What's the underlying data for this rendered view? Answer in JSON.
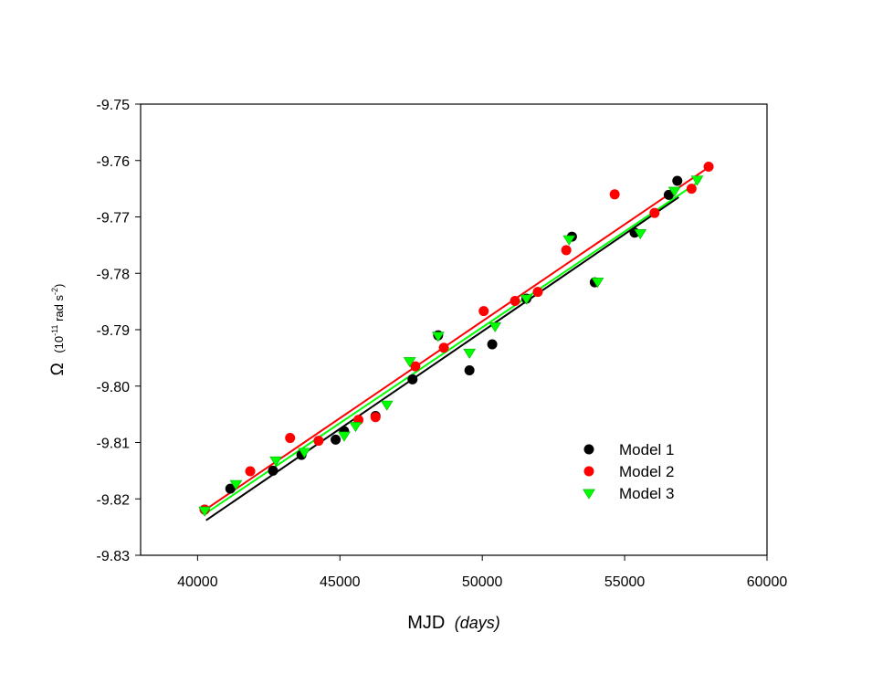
{
  "chart_data": {
    "type": "scatter",
    "xlabel": "MJD",
    "xlabel_unit": "(days)",
    "ylabel_symbol": "Ω",
    "ylabel_unit_prefix": "(10",
    "ylabel_unit_exp": "-11",
    "ylabel_unit_mid": " rad s",
    "ylabel_unit_exp2": "-2",
    "ylabel_unit_suffix": ")",
    "xlim": [
      38000,
      60000
    ],
    "ylim": [
      -9.83,
      -9.75
    ],
    "x_ticks": [
      {
        "v": 40000,
        "label": "40000"
      },
      {
        "v": 45000,
        "label": "45000"
      },
      {
        "v": 50000,
        "label": "50000"
      },
      {
        "v": 55000,
        "label": "55000"
      },
      {
        "v": 60000,
        "label": "60000"
      }
    ],
    "y_ticks": [
      {
        "v": -9.75,
        "label": "-9.75"
      },
      {
        "v": -9.76,
        "label": "-9.76"
      },
      {
        "v": -9.77,
        "label": "-9.77"
      },
      {
        "v": -9.78,
        "label": "-9.78"
      },
      {
        "v": -9.79,
        "label": "-9.79"
      },
      {
        "v": -9.8,
        "label": "-9.80"
      },
      {
        "v": -9.81,
        "label": "-9.81"
      },
      {
        "v": -9.82,
        "label": "-9.82"
      },
      {
        "v": -9.83,
        "label": "-9.83"
      }
    ],
    "grid": false,
    "legend_position": "lower-right",
    "series": [
      {
        "name": "Model 1",
        "marker": "circle",
        "color": "#000000",
        "points": [
          [
            40250,
            -9.8219
          ],
          [
            41150,
            -9.8182
          ],
          [
            42650,
            -9.815
          ],
          [
            43650,
            -9.8122
          ],
          [
            44850,
            -9.8095
          ],
          [
            45150,
            -9.808
          ],
          [
            46250,
            -9.8053
          ],
          [
            47550,
            -9.7988
          ],
          [
            48450,
            -9.791
          ],
          [
            49550,
            -9.7972
          ],
          [
            50350,
            -9.7926
          ],
          [
            51550,
            -9.7845
          ],
          [
            53150,
            -9.7735
          ],
          [
            53950,
            -9.7816
          ],
          [
            55350,
            -9.7728
          ],
          [
            56550,
            -9.7661
          ],
          [
            56850,
            -9.7636
          ]
        ],
        "fit": [
          [
            40300,
            -9.8238
          ],
          [
            56900,
            -9.7665
          ]
        ]
      },
      {
        "name": "Model 2",
        "marker": "circle",
        "color": "#ff0000",
        "points": [
          [
            40250,
            -9.8219
          ],
          [
            41850,
            -9.8151
          ],
          [
            43250,
            -9.8092
          ],
          [
            44250,
            -9.8097
          ],
          [
            45650,
            -9.806
          ],
          [
            46250,
            -9.8055
          ],
          [
            47650,
            -9.7965
          ],
          [
            48650,
            -9.7932
          ],
          [
            50050,
            -9.7867
          ],
          [
            51150,
            -9.7849
          ],
          [
            51950,
            -9.7833
          ],
          [
            52950,
            -9.7759
          ],
          [
            54650,
            -9.766
          ],
          [
            56050,
            -9.7693
          ],
          [
            57350,
            -9.765
          ],
          [
            57950,
            -9.7611
          ]
        ],
        "fit": [
          [
            40250,
            -9.822
          ],
          [
            57950,
            -9.7612
          ]
        ]
      },
      {
        "name": "Model 3",
        "marker": "triangle-down",
        "color": "#00ff00",
        "points": [
          [
            40250,
            -9.8221
          ],
          [
            41350,
            -9.8174
          ],
          [
            42750,
            -9.8132
          ],
          [
            43750,
            -9.8117
          ],
          [
            45150,
            -9.8088
          ],
          [
            45550,
            -9.8071
          ],
          [
            46650,
            -9.8033
          ],
          [
            47450,
            -9.7956
          ],
          [
            48450,
            -9.7911
          ],
          [
            49550,
            -9.7941
          ],
          [
            50450,
            -9.7894
          ],
          [
            51550,
            -9.7845
          ],
          [
            53050,
            -9.774
          ],
          [
            54050,
            -9.7815
          ],
          [
            55550,
            -9.7729
          ],
          [
            56750,
            -9.7654
          ],
          [
            57550,
            -9.7634
          ]
        ],
        "fit": [
          [
            40250,
            -9.8227
          ],
          [
            57650,
            -9.7636
          ]
        ]
      }
    ]
  }
}
